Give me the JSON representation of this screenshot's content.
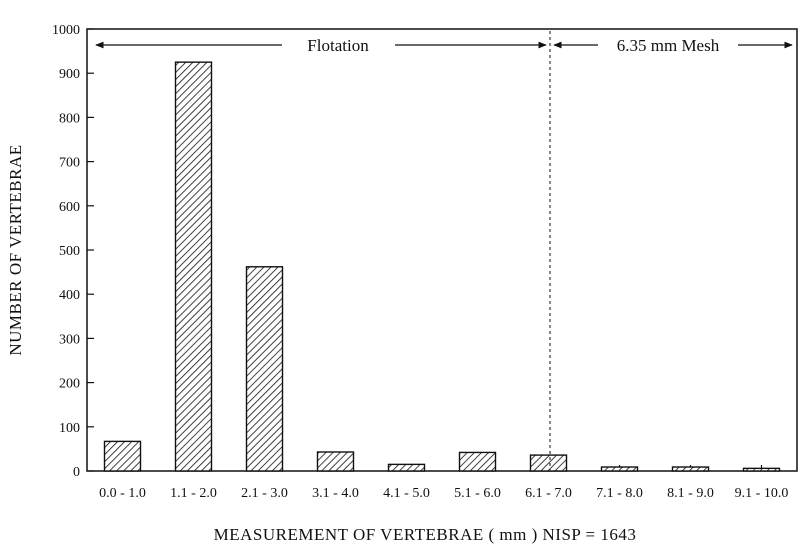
{
  "chart_data": {
    "type": "bar",
    "title": "",
    "xlabel": "MEASUREMENT OF VERTEBRAE ( mm ) NISP = 1643",
    "ylabel": "NUMBER OF VERTEBRAE",
    "ylim": [
      0,
      1000
    ],
    "yticks": [
      "0",
      "100",
      "200",
      "300",
      "400",
      "500",
      "600",
      "700",
      "800",
      "900",
      "1000"
    ],
    "categories": [
      "0.0 - 1.0",
      "1.1 - 2.0",
      "2.1 - 3.0",
      "3.1 - 4.0",
      "4.1 - 5.0",
      "5.1 - 6.0",
      "6.1 - 7.0",
      "7.1 - 8.0",
      "8.1 - 9.0",
      "9.1 - 10.0"
    ],
    "values": [
      67,
      925,
      462,
      43,
      15,
      42,
      36,
      9,
      9,
      6
    ],
    "grid": false,
    "bar_fill": "diagonal-hatch",
    "annotations": {
      "left_label": "Flotation",
      "right_label": "6.35 mm Mesh",
      "divider_between": [
        "6.1 - 7.0",
        "7.1 - 8.0"
      ]
    }
  }
}
